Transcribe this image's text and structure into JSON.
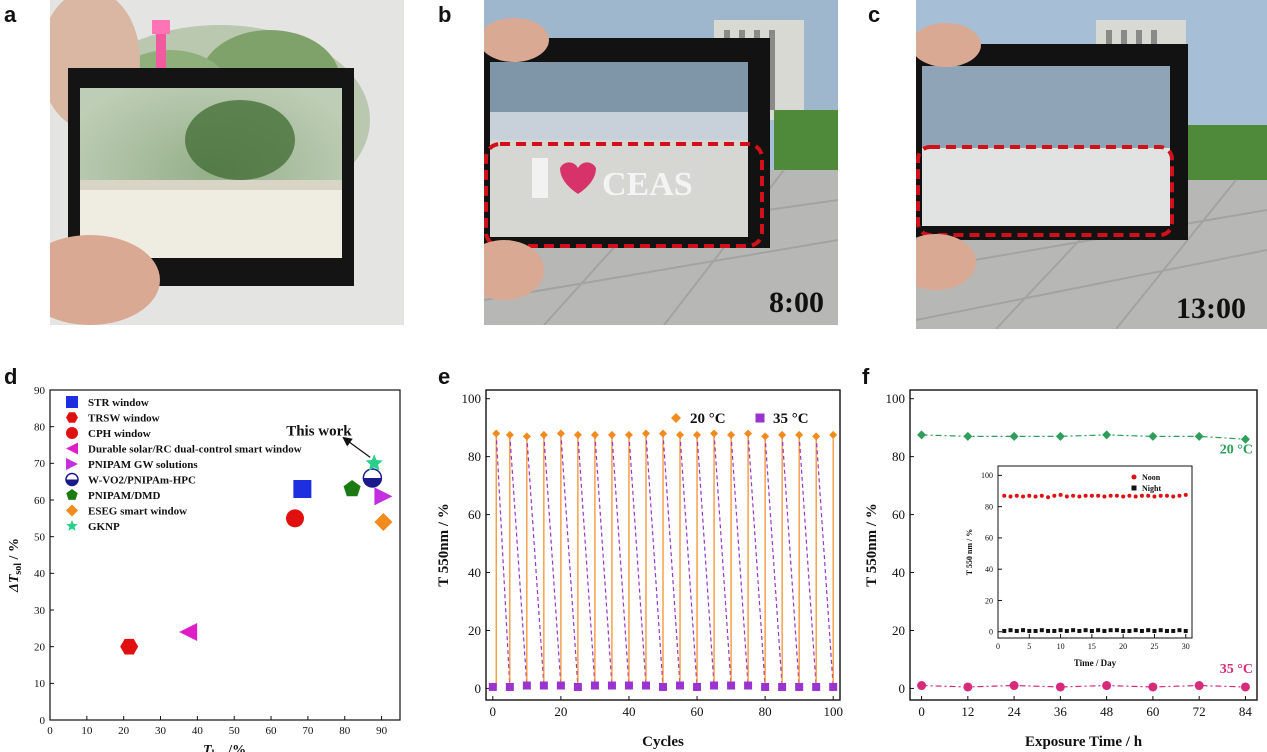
{
  "panels": {
    "a": "a",
    "b": "b",
    "c": "c",
    "d": "d",
    "e": "e",
    "f": "f"
  },
  "photos": {
    "b_time": "8:00",
    "b_sign": "CEAS",
    "c_time": "13:00"
  },
  "colors": {
    "frame": "#101010",
    "dashed": "#d0101a",
    "orange": "#f28a1e",
    "purple": "#9a33cf",
    "green": "#2e9e5a",
    "magenta": "#d62a7b",
    "red_series": "#e01010"
  },
  "chart_data": [
    {
      "id": "d",
      "type": "scatter",
      "xlabel_main": "T",
      "xlabel_sub": "lum",
      "xlabel_unit": "/%",
      "ylabel_prefix": "ΔT",
      "ylabel_sub": "sol",
      "ylabel_unit": " / %",
      "xlim": [
        0,
        95
      ],
      "ylim": [
        0,
        90
      ],
      "xticks": [
        0,
        10,
        20,
        30,
        40,
        50,
        60,
        70,
        80,
        90
      ],
      "yticks": [
        0,
        10,
        20,
        30,
        40,
        50,
        60,
        70,
        80,
        90
      ],
      "annotation": "This work",
      "series": [
        {
          "name": "STR window",
          "marker": "square",
          "color": "#1e2fe0",
          "x": 68.5,
          "y": 63
        },
        {
          "name": "TRSW window",
          "marker": "hexagon",
          "color": "#e01010",
          "x": 21.5,
          "y": 20
        },
        {
          "name": "CPH window",
          "marker": "circle",
          "color": "#e01010",
          "x": 66.5,
          "y": 55
        },
        {
          "name": "Durable solar/RC dual-control smart window",
          "marker": "triangle-left",
          "color": "#e01ec8",
          "x": 37.5,
          "y": 24
        },
        {
          "name": "PNIPAM GW solutions",
          "marker": "triangle-right",
          "color": "#c22ee0",
          "x": 90.5,
          "y": 61
        },
        {
          "name": "W-VO2/PNIPAm-HPC",
          "marker": "half-circle",
          "color": "#1a1a8c",
          "x": 87.5,
          "y": 66
        },
        {
          "name": "PNIPAM/DMD",
          "marker": "pentagon",
          "color": "#1c7a14",
          "x": 82,
          "y": 63
        },
        {
          "name": "ESEG smart window",
          "marker": "diamond",
          "color": "#f28a1e",
          "x": 90.5,
          "y": 54
        },
        {
          "name": "GKNP",
          "marker": "star",
          "color": "#2ad08a",
          "x": 88,
          "y": 70
        }
      ]
    },
    {
      "id": "e",
      "type": "line",
      "xlabel": "Cycles",
      "ylabel": "T 550nm / %",
      "xlim": [
        -2,
        102
      ],
      "ylim": [
        -4,
        103
      ],
      "xticks": [
        0,
        20,
        40,
        60,
        80,
        100
      ],
      "yticks": [
        0,
        20,
        40,
        60,
        80,
        100
      ],
      "series": [
        {
          "name": "20 °C",
          "marker": "diamond",
          "color": "#f28a1e",
          "x": [
            1,
            5,
            10,
            15,
            20,
            25,
            30,
            35,
            40,
            45,
            50,
            55,
            60,
            65,
            70,
            75,
            80,
            85,
            90,
            95,
            100
          ],
          "values": [
            88,
            87.5,
            87,
            87.5,
            88,
            87.5,
            87.5,
            87.5,
            87.5,
            88,
            88,
            87.5,
            87.5,
            88,
            87.5,
            88,
            87,
            87.5,
            87.5,
            87,
            87.5
          ]
        },
        {
          "name": "35 °C",
          "marker": "square",
          "color": "#9a33cf",
          "x": [
            0,
            5,
            10,
            15,
            20,
            25,
            30,
            35,
            40,
            45,
            50,
            55,
            60,
            65,
            70,
            75,
            80,
            85,
            90,
            95,
            100
          ],
          "values": [
            0.5,
            0.5,
            1,
            1,
            1,
            0.5,
            1,
            1,
            1,
            1,
            0.5,
            1,
            0.5,
            1,
            1,
            1,
            0.5,
            0.5,
            0.5,
            0.5,
            0.5
          ]
        }
      ]
    },
    {
      "id": "f",
      "type": "line",
      "xlabel": "Exposure Time / h",
      "ylabel": "T 550nm / %",
      "xlim": [
        -3,
        87
      ],
      "ylim": [
        -4,
        103
      ],
      "xticks": [
        0,
        12,
        24,
        36,
        48,
        60,
        72,
        84
      ],
      "yticks": [
        0,
        20,
        40,
        60,
        80,
        100
      ],
      "series": [
        {
          "name": "20 °C",
          "marker": "diamond",
          "color": "#2e9e5a",
          "x": [
            0,
            12,
            24,
            36,
            48,
            60,
            72,
            84
          ],
          "values": [
            87.5,
            87,
            87,
            87,
            87.5,
            87,
            87,
            86
          ]
        },
        {
          "name": "35 °C",
          "marker": "circle",
          "color": "#d62a7b",
          "x": [
            0,
            12,
            24,
            36,
            48,
            60,
            72,
            84
          ],
          "values": [
            1,
            0.5,
            1,
            0.5,
            1,
            0.5,
            1,
            0.5
          ]
        }
      ],
      "inset": {
        "xlabel": "Time / Day",
        "ylabel": "T 550 nm / %",
        "xlim": [
          0,
          31
        ],
        "ylim": [
          -4,
          106
        ],
        "xticks": [
          0,
          5,
          10,
          15,
          20,
          25,
          30
        ],
        "yticks": [
          0,
          20,
          40,
          60,
          80,
          100
        ],
        "series": [
          {
            "name": "Noon",
            "marker": "circle",
            "color": "#e01010",
            "x": [
              1,
              2,
              3,
              4,
              5,
              6,
              7,
              8,
              9,
              10,
              11,
              12,
              13,
              14,
              15,
              16,
              17,
              18,
              19,
              20,
              21,
              22,
              23,
              24,
              25,
              26,
              27,
              28,
              29,
              30
            ],
            "values": [
              87,
              86.5,
              87,
              86.5,
              87,
              86.5,
              87,
              86,
              87,
              87.5,
              86.5,
              87,
              86.5,
              87,
              87,
              87,
              86.5,
              87,
              87,
              86.5,
              87,
              86.5,
              87,
              87,
              86.5,
              87,
              87,
              86.5,
              87,
              87.5
            ]
          },
          {
            "name": "Night",
            "marker": "square",
            "color": "#111111",
            "x": [
              1,
              2,
              3,
              4,
              5,
              6,
              7,
              8,
              9,
              10,
              11,
              12,
              13,
              14,
              15,
              16,
              17,
              18,
              19,
              20,
              21,
              22,
              23,
              24,
              25,
              26,
              27,
              28,
              29,
              30
            ],
            "values": [
              0.5,
              1,
              0.5,
              1,
              0.5,
              0.5,
              1,
              0.5,
              0.5,
              1,
              0.5,
              1,
              0.5,
              1,
              0.5,
              1,
              0.5,
              1,
              1,
              0.5,
              0.5,
              1,
              0.5,
              1,
              0.5,
              1,
              0.5,
              0.5,
              1,
              0.5
            ]
          }
        ]
      }
    }
  ]
}
